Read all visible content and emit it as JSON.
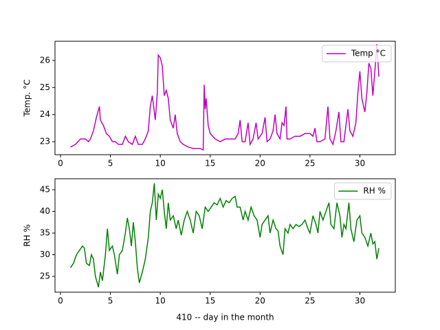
{
  "chart_data": [
    {
      "type": "line",
      "ylabel": "Temp. °C",
      "legend": "upper right",
      "x": [
        1.0,
        1.5,
        2.0,
        2.5,
        2.8,
        3.0,
        3.3,
        3.6,
        3.9,
        4.0,
        4.3,
        4.6,
        4.9,
        5.2,
        5.5,
        5.8,
        6.2,
        6.5,
        6.8,
        7.2,
        7.5,
        7.8,
        8.2,
        8.5,
        8.8,
        9.0,
        9.2,
        9.5,
        9.7,
        9.8,
        10.0,
        10.2,
        10.4,
        10.6,
        10.8,
        11.0,
        11.3,
        11.5,
        11.7,
        12.0,
        12.3,
        12.8,
        13.3,
        14.0,
        14.3,
        14.4,
        14.5,
        14.6,
        14.8,
        15.0,
        15.5,
        16.0,
        16.5,
        17.0,
        17.5,
        17.8,
        18.0,
        18.2,
        18.5,
        18.8,
        19.0,
        19.3,
        19.6,
        19.8,
        20.2,
        20.5,
        20.7,
        21.0,
        21.3,
        21.5,
        21.7,
        22.0,
        22.2,
        22.4,
        22.6,
        22.7,
        23.0,
        23.5,
        24.0,
        24.5,
        25.0,
        25.3,
        25.5,
        25.7,
        26.0,
        26.5,
        26.8,
        27.0,
        27.3,
        27.6,
        27.9,
        28.1,
        28.4,
        28.6,
        28.8,
        29.0,
        29.3,
        29.6,
        29.8,
        30.0,
        30.2,
        30.5,
        30.7,
        30.9,
        31.1,
        31.3,
        31.5,
        31.7,
        31.9
      ],
      "series": [
        {
          "name": "Temp °C",
          "color": "#bf00bf",
          "values": [
            22.8,
            22.9,
            23.1,
            23.1,
            23.0,
            23.1,
            23.4,
            23.9,
            24.3,
            23.8,
            23.6,
            23.3,
            23.2,
            23.0,
            23.0,
            22.9,
            22.9,
            23.2,
            23.0,
            22.9,
            23.2,
            22.9,
            22.9,
            23.1,
            23.4,
            24.3,
            24.7,
            23.8,
            24.8,
            26.2,
            26.1,
            25.8,
            24.7,
            24.9,
            24.6,
            23.8,
            23.5,
            24.0,
            23.3,
            23.0,
            22.9,
            22.8,
            22.75,
            22.75,
            22.7,
            25.1,
            24.2,
            24.6,
            23.6,
            23.3,
            23.1,
            23.0,
            23.1,
            23.1,
            23.1,
            23.3,
            23.8,
            23.0,
            23.0,
            23.7,
            22.9,
            23.1,
            23.7,
            23.1,
            23.3,
            23.9,
            23.0,
            23.1,
            23.4,
            24.0,
            23.3,
            23.1,
            23.7,
            23.6,
            24.3,
            23.1,
            23.1,
            23.2,
            23.2,
            23.3,
            23.3,
            23.2,
            23.5,
            23.0,
            23.0,
            23.1,
            24.3,
            23.1,
            22.9,
            23.4,
            24.1,
            23.0,
            23.0,
            23.6,
            24.2,
            23.4,
            23.2,
            23.7,
            24.8,
            25.6,
            24.6,
            24.1,
            24.8,
            25.9,
            25.7,
            24.7,
            25.6,
            26.6,
            25.4
          ]
        }
      ],
      "xlim": [
        -0.55,
        33.55
      ],
      "ylim": [
        22.52,
        26.71
      ],
      "xticks": [
        0,
        5,
        10,
        15,
        20,
        25,
        30
      ],
      "yticks": [
        23,
        24,
        25,
        26
      ]
    },
    {
      "type": "line",
      "ylabel": "RH %",
      "xlabel": "410 -- day in the month",
      "legend": "upper right",
      "x": [
        1.0,
        1.3,
        1.6,
        1.9,
        2.2,
        2.4,
        2.6,
        2.9,
        3.1,
        3.3,
        3.5,
        3.8,
        4.0,
        4.2,
        4.5,
        4.7,
        4.9,
        5.2,
        5.4,
        5.7,
        5.9,
        6.2,
        6.5,
        6.7,
        6.9,
        7.1,
        7.3,
        7.5,
        7.7,
        7.9,
        8.2,
        8.5,
        8.8,
        9.0,
        9.2,
        9.4,
        9.6,
        9.8,
        10.0,
        10.2,
        10.4,
        10.6,
        10.8,
        11.0,
        11.3,
        11.6,
        11.8,
        12.1,
        12.4,
        12.7,
        13.0,
        13.3,
        13.6,
        13.9,
        14.2,
        14.5,
        14.8,
        15.1,
        15.4,
        15.7,
        16.0,
        16.3,
        16.6,
        16.9,
        17.2,
        17.5,
        17.7,
        18.0,
        18.3,
        18.5,
        18.8,
        19.1,
        19.4,
        19.7,
        20.0,
        20.2,
        20.5,
        20.8,
        21.0,
        21.3,
        21.6,
        21.8,
        22.0,
        22.3,
        22.5,
        22.8,
        23.0,
        23.3,
        23.6,
        23.9,
        24.2,
        24.5,
        24.8,
        25.0,
        25.3,
        25.6,
        25.8,
        26.0,
        26.3,
        26.6,
        26.9,
        27.1,
        27.4,
        27.7,
        28.0,
        28.2,
        28.4,
        28.6,
        28.9,
        29.1,
        29.4,
        29.7,
        30.0,
        30.2,
        30.5,
        30.8,
        31.1,
        31.3,
        31.5,
        31.7,
        31.9
      ],
      "series": [
        {
          "name": "RH %",
          "color": "#008000",
          "values": [
            27,
            28,
            30,
            31,
            32,
            31.5,
            28,
            27.5,
            30,
            29,
            25,
            22.5,
            26,
            24,
            30,
            36,
            31,
            32,
            30,
            25.5,
            30,
            31,
            35,
            38.5,
            36,
            32,
            37.5,
            33,
            27,
            23.5,
            26,
            29,
            34,
            40,
            42,
            46.5,
            38,
            44,
            43,
            45,
            40,
            36,
            42,
            38,
            39,
            36,
            38,
            34.5,
            38,
            40,
            38,
            35,
            40,
            39,
            36,
            41,
            40,
            41,
            42,
            41.5,
            43,
            41,
            42.5,
            42,
            43,
            43.5,
            41,
            41,
            38,
            40,
            38,
            41,
            39,
            38,
            34,
            37,
            38,
            39,
            35,
            38,
            36,
            35.5,
            32,
            30,
            36,
            35,
            37,
            36,
            37,
            36.5,
            37,
            38,
            36,
            35,
            39,
            37,
            35,
            40,
            38,
            40,
            42,
            37,
            36,
            42,
            39,
            34,
            37,
            36,
            42,
            36,
            33,
            38,
            39,
            35,
            34,
            32,
            35,
            32.5,
            33,
            29,
            31.5
          ]
        }
      ],
      "xlim": [
        -0.55,
        33.55
      ],
      "ylim": [
        21.35,
        47.54
      ],
      "xticks": [
        0,
        5,
        10,
        15,
        20,
        25,
        30
      ],
      "yticks": [
        25,
        30,
        35,
        40,
        45
      ]
    }
  ]
}
